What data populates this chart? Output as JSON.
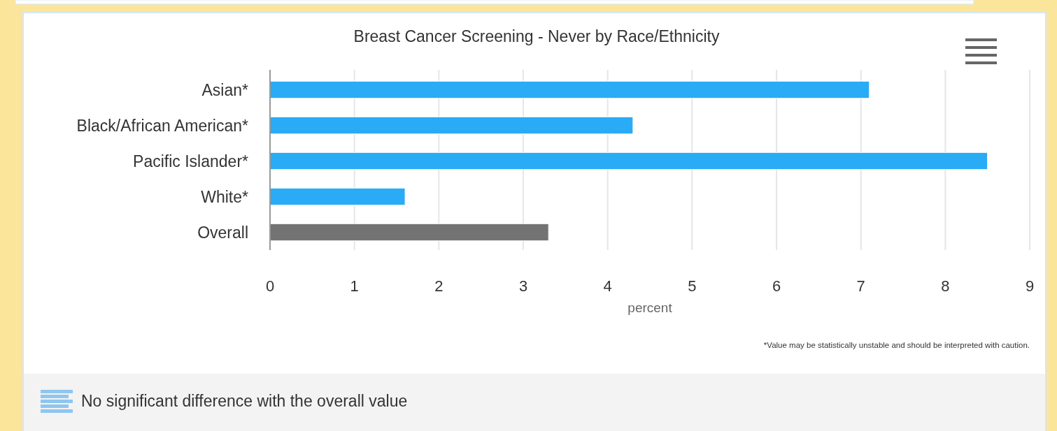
{
  "chart_data": {
    "type": "bar",
    "orientation": "horizontal",
    "title": "Breast Cancer Screening - Never by Race/Ethnicity",
    "categories": [
      "Asian*",
      "Black/African American*",
      "Pacific Islander*",
      "White*",
      "Overall"
    ],
    "values": [
      7.1,
      4.3,
      8.5,
      1.6,
      3.3
    ],
    "colors": [
      "#29abf5",
      "#29abf5",
      "#29abf5",
      "#29abf5",
      "#737373"
    ],
    "xlim": [
      0,
      9
    ],
    "xticks": [
      0,
      1,
      2,
      3,
      4,
      5,
      6,
      7,
      8,
      9
    ],
    "xlabel": "percent",
    "grid": "x",
    "annotations": [
      "*Value may be statistically unstable and should be interpreted with caution.",
      "No significant difference with the overall value"
    ]
  }
}
